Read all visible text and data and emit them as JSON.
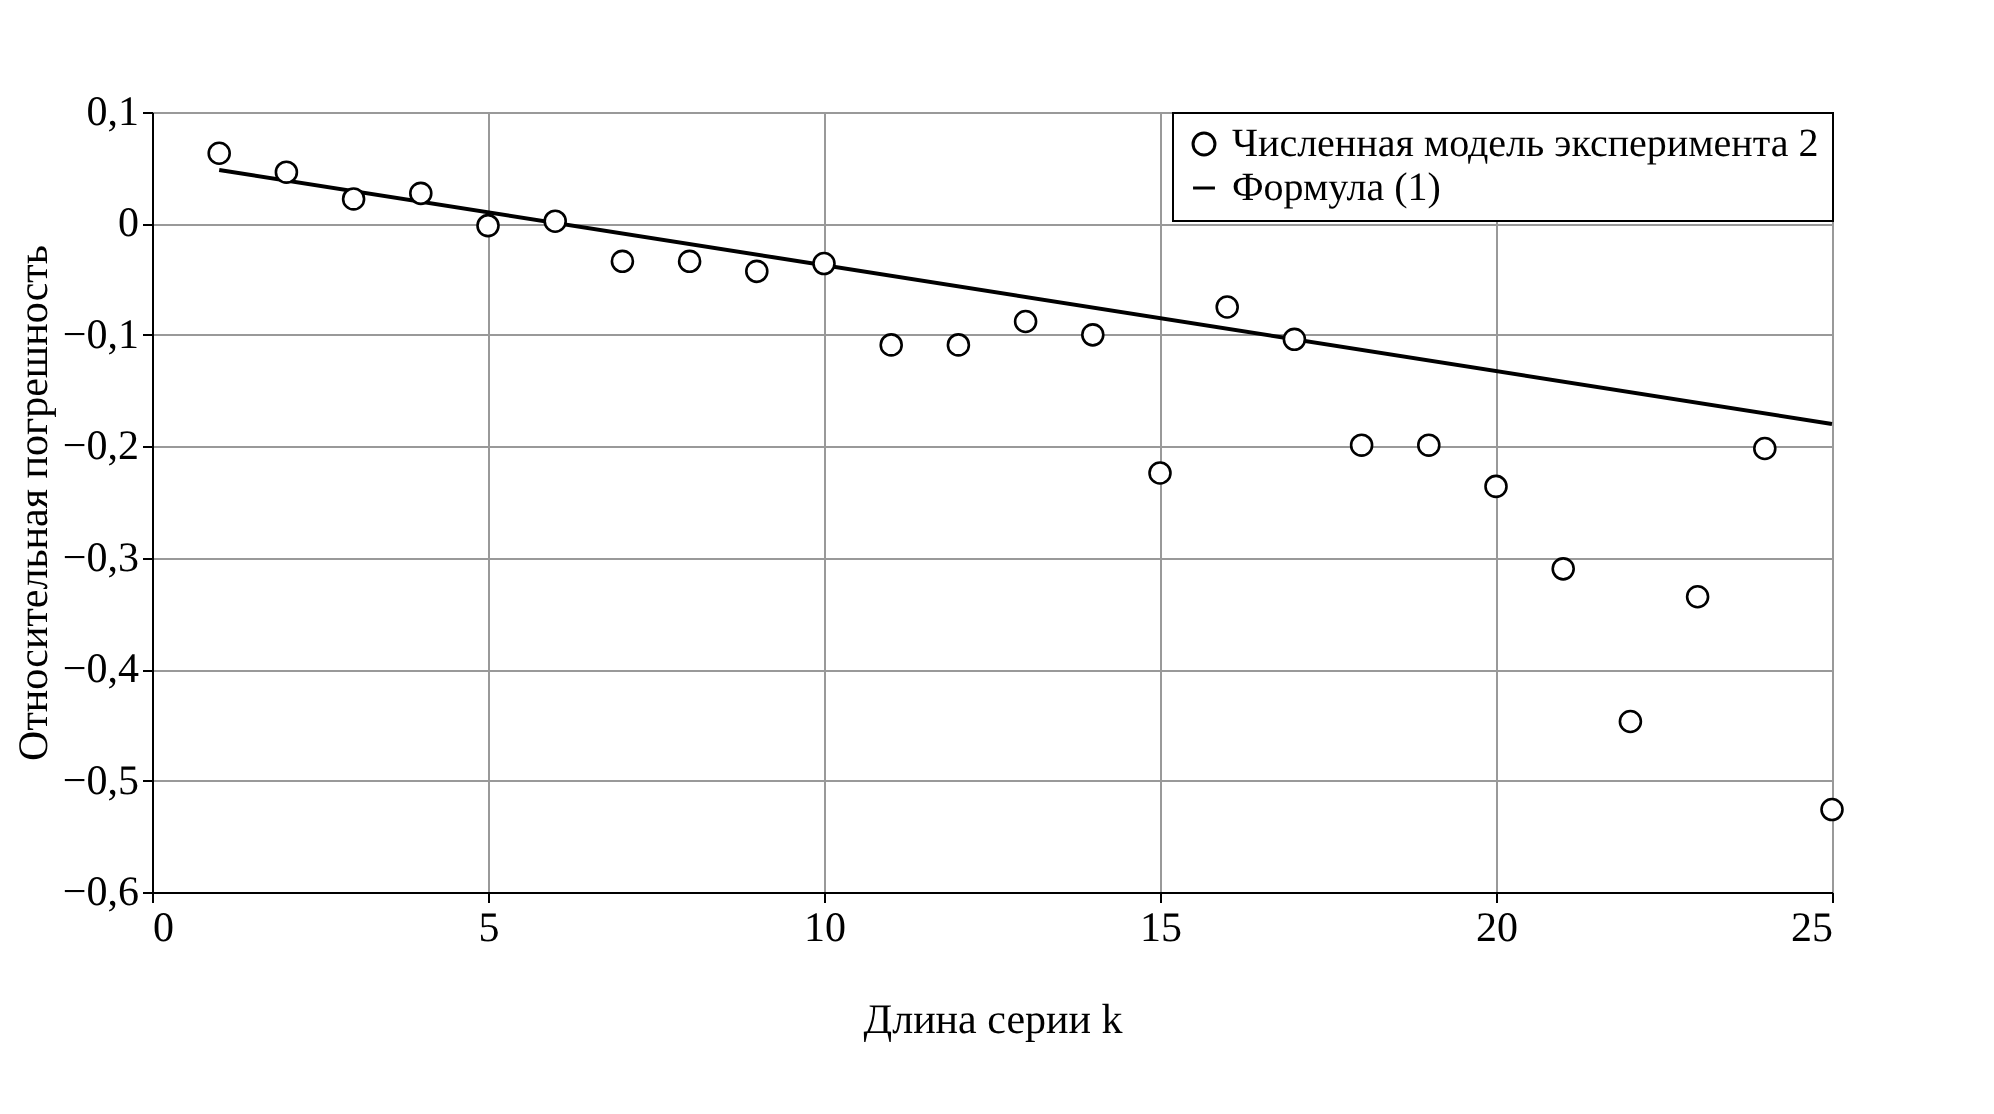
{
  "chart_data": {
    "type": "scatter",
    "xlabel": "Длина серии k",
    "ylabel": "Относительная погрешность",
    "xlim": [
      0,
      25
    ],
    "xticks": [
      0,
      5,
      10,
      15,
      20,
      25
    ],
    "ylim": [
      -0.6,
      0.1
    ],
    "yticks": [
      {
        "value": -0.6,
        "label": "−0,6"
      },
      {
        "value": -0.5,
        "label": "−0,5"
      },
      {
        "value": -0.4,
        "label": "−0,4"
      },
      {
        "value": -0.3,
        "label": "−0,3"
      },
      {
        "value": -0.2,
        "label": "−0,2"
      },
      {
        "value": -0.1,
        "label": "−0,1"
      },
      {
        "value": 0,
        "label": "0"
      },
      {
        "value": 0.1,
        "label": "0,1"
      }
    ],
    "grid": true,
    "legend": "top right",
    "series": [
      {
        "name": "Численная модель эксперимента 2",
        "marker": "circle",
        "color": "#000000",
        "x": [
          1,
          2,
          3,
          4,
          5,
          6,
          7,
          8,
          9,
          10,
          11,
          12,
          13,
          14,
          15,
          16,
          17,
          18,
          19,
          20,
          21,
          22,
          23,
          24,
          25
        ],
        "values": [
          0.063,
          0.046,
          0.022,
          0.027,
          -0.002,
          0.002,
          -0.034,
          -0.034,
          -0.043,
          -0.036,
          -0.109,
          -0.109,
          -0.088,
          -0.1,
          -0.224,
          -0.075,
          -0.104,
          -0.199,
          -0.199,
          -0.236,
          -0.31,
          -0.447,
          -0.335,
          -0.202,
          -0.526
        ]
      },
      {
        "name": "Формула (1)",
        "type": "line",
        "marker": "none",
        "line_style": "solid",
        "color": "#000000",
        "x": [
          1,
          25
        ],
        "values": [
          0.048,
          -0.18
        ]
      }
    ]
  }
}
